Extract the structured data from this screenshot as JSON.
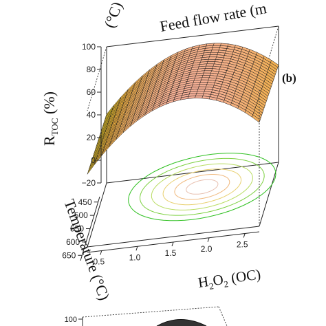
{
  "top_fragment": {
    "axis_label_rotated": "(°C)",
    "axis_label_cut": "Feed flow rate (m"
  },
  "chart_data": [
    {
      "type": "surface3d",
      "panel_label": "(b)",
      "zlabel_main": "R",
      "zlabel_sub": "TOC",
      "zlabel_unit": " (%)",
      "ylabel": "Temperature (°C)",
      "xlabel_main": "H",
      "xlabel_sub": "2",
      "xlabel_mid": "O",
      "xlabel_sub2": "2",
      "xlabel_tail": " (OC)",
      "x_ticks": [
        "0.5",
        "1.0",
        "1.5",
        "2.0",
        "2.5"
      ],
      "x_values": [
        0.5,
        1.0,
        1.5,
        2.0,
        2.5
      ],
      "y_ticks": [
        "450",
        "500",
        "550",
        "600",
        "650"
      ],
      "y_values": [
        450,
        500,
        550,
        600,
        650
      ],
      "z_ticks": [
        "−20",
        "0",
        "20",
        "40",
        "60",
        "80",
        "100"
      ],
      "z_values": [
        -20,
        0,
        20,
        40,
        60,
        80,
        100
      ],
      "xlim": [
        0.3,
        2.7
      ],
      "ylim": [
        430,
        670
      ],
      "zlim": [
        -20,
        100
      ],
      "surface": {
        "peak_x": 1.7,
        "peak_z": 100,
        "edge_z_low_x": 0,
        "edge_z_high_x": 10
      },
      "colormap": [
        "#00c000",
        "#c0d000",
        "#f0b040",
        "#f6b09a"
      ],
      "contour_projection": true,
      "box": true
    },
    {
      "type": "surface3d",
      "z_ticks": [
        "100"
      ],
      "z_values": [
        100
      ],
      "partial": true
    }
  ]
}
